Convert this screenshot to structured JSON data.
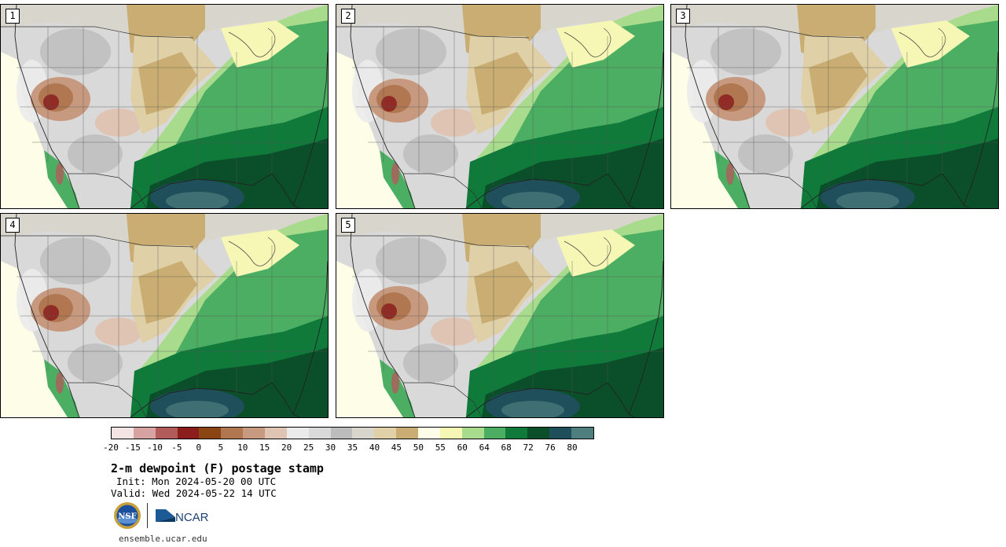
{
  "panels": [
    {
      "label": "1"
    },
    {
      "label": "2"
    },
    {
      "label": "3"
    },
    {
      "label": "4"
    },
    {
      "label": "5"
    }
  ],
  "colorbar": {
    "colors": [
      "#f4e4e4",
      "#d6a2a2",
      "#b25b5b",
      "#8c1d1d",
      "#8b4513",
      "#b07750",
      "#c79a80",
      "#dfc3b3",
      "#ebebeb",
      "#d9d9d9",
      "#bcbcbc",
      "#d8d5cd",
      "#e0d0a8",
      "#c9ad72",
      "#fdfde8",
      "#f7f7b5",
      "#a8dc8c",
      "#4cae62",
      "#0f7a3a",
      "#0b4f2a",
      "#1e4f5a",
      "#4f7e7e"
    ],
    "tick_labels": [
      "-20",
      "-15",
      "-10",
      "-5",
      "0",
      "5",
      "10",
      "15",
      "20",
      "25",
      "30",
      "35",
      "40",
      "45",
      "50",
      "55",
      "60",
      "64",
      "68",
      "72",
      "76",
      "80"
    ]
  },
  "title": "2-m dewpoint (F) postage stamp",
  "init": "Init: Mon 2024-05-20 00 UTC",
  "valid": "Valid: Wed 2024-05-22 14 UTC",
  "logos": {
    "nsf": "NSF",
    "ncar": "NCAR"
  },
  "site": "ensemble.ucar.edu"
}
